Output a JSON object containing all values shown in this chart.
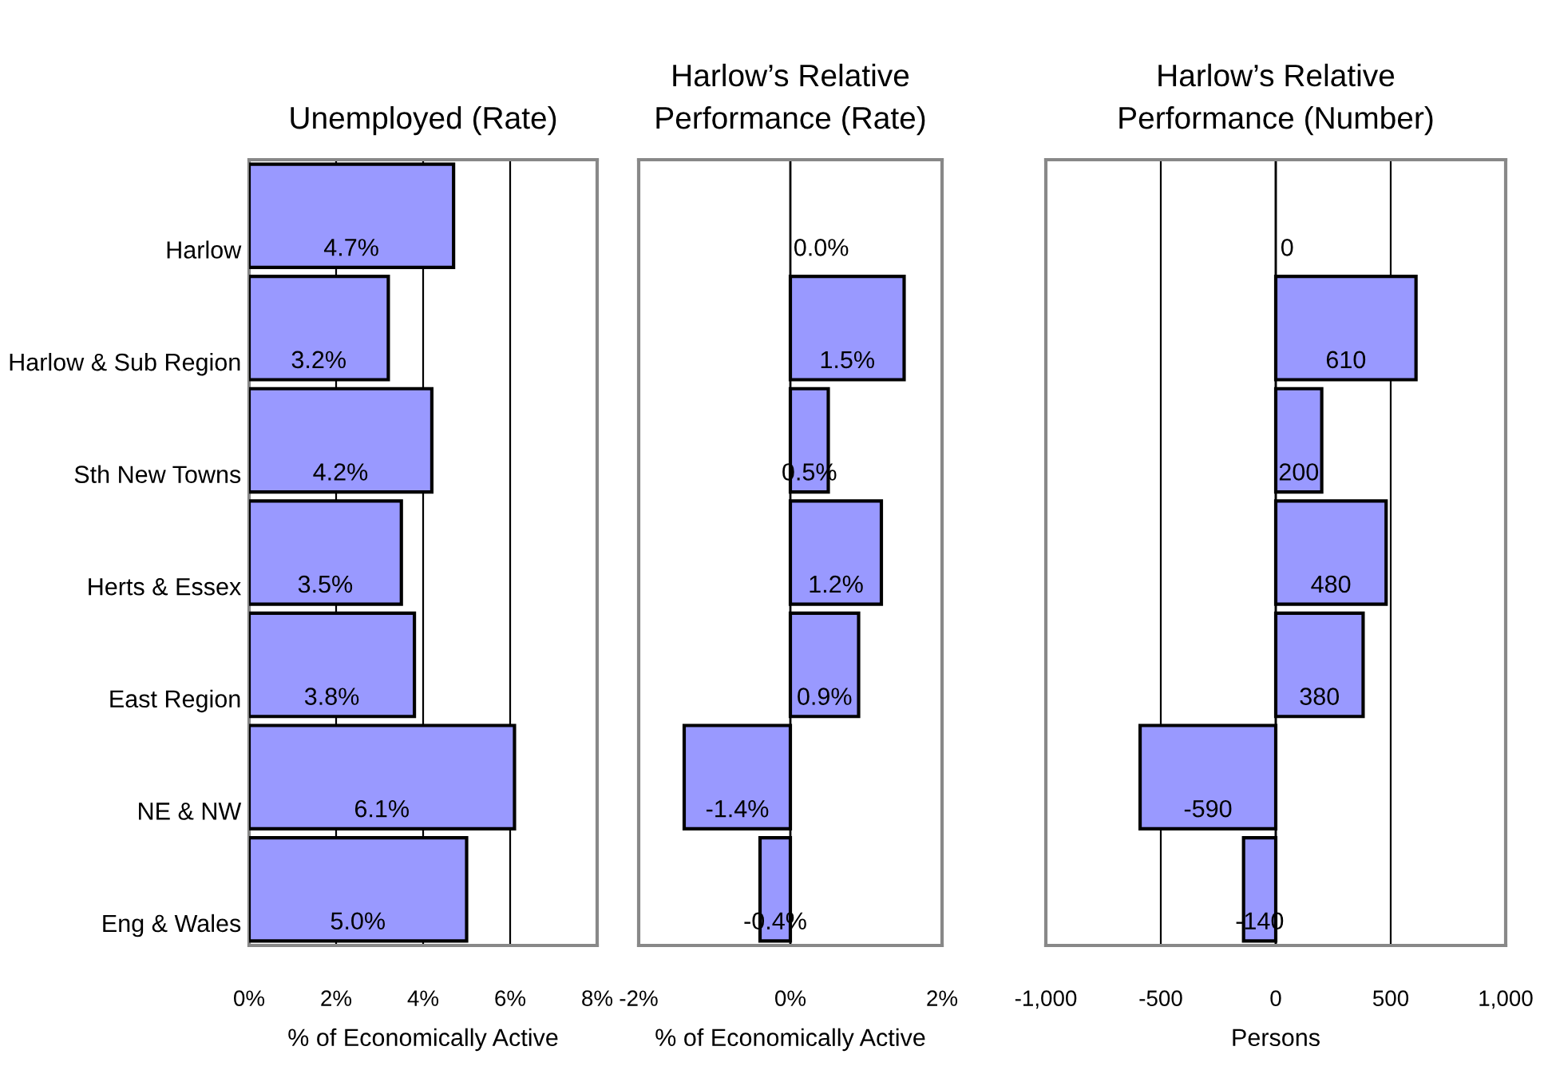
{
  "chart_data": [
    {
      "type": "bar",
      "orientation": "horizontal",
      "title": "Unemployed (Rate)",
      "xlabel": "% of Economically Active",
      "categories": [
        "Harlow",
        "Harlow & Sub Region",
        "Sth New Towns",
        "Herts & Essex",
        "East Region",
        "NE & NW",
        "Eng & Wales"
      ],
      "values": [
        4.7,
        3.2,
        4.2,
        3.5,
        3.8,
        6.1,
        5.0
      ],
      "value_labels": [
        "4.7%",
        "3.2%",
        "4.2%",
        "3.5%",
        "3.8%",
        "6.1%",
        "5.0%"
      ],
      "color": "#9999ff",
      "xlim": [
        0,
        8
      ],
      "xticks": [
        {
          "value": 0,
          "label": "0%"
        },
        {
          "value": 2,
          "label": "2%"
        },
        {
          "value": 4,
          "label": "4%"
        },
        {
          "value": 6,
          "label": "6%"
        },
        {
          "value": 8,
          "label": "8%"
        }
      ],
      "grid": "x"
    },
    {
      "type": "bar",
      "orientation": "horizontal",
      "title": "Harlow’s Relative Performance (Rate)",
      "xlabel": "% of Economically Active",
      "categories": [
        null,
        null,
        null,
        null,
        null,
        null,
        null
      ],
      "values": [
        0.0,
        1.5,
        0.5,
        1.2,
        0.9,
        -1.4,
        -0.4
      ],
      "value_labels": [
        "0.0%",
        "1.5%",
        "0.5%",
        "1.2%",
        "0.9%",
        "-1.4%",
        "-0.4%"
      ],
      "color": "#9999ff",
      "xlim": [
        -2,
        2
      ],
      "xticks": [
        {
          "value": -2,
          "label": "-2%"
        },
        {
          "value": 0,
          "label": "0%"
        },
        {
          "value": 2,
          "label": "2%"
        }
      ],
      "tick_labels": "x"
    },
    {
      "type": "bar",
      "orientation": "horizontal",
      "title": "Harlow’s Relative Performance (Number)",
      "xlabel": "Persons",
      "categories": [
        null,
        null,
        null,
        null,
        null,
        null,
        null
      ],
      "values": [
        0,
        610,
        200,
        480,
        380,
        -590,
        -140
      ],
      "data_labels": true,
      "color": "#9999ff",
      "xlim": [
        -1000,
        1000
      ],
      "xticks": [
        {
          "value": -1000,
          "label": "-1,000"
        },
        -500,
        0,
        500,
        {
          "value": 1000,
          "label": "1,000"
        }
      ],
      "grid": "x",
      "tick_labels": "x"
    }
  ]
}
